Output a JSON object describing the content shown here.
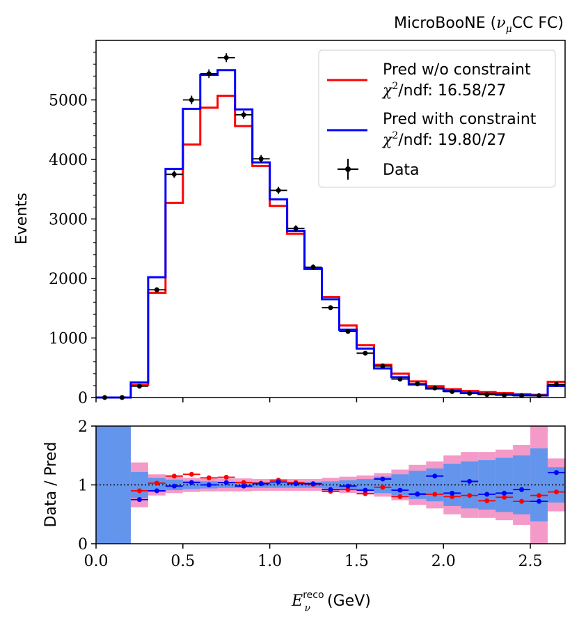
{
  "chart_data": [
    {
      "type": "histogram",
      "title": "MicroBooNE (νμCC FC)",
      "title_main": "MicroBooNE (",
      "title_nu": "ν",
      "title_mu": "μ",
      "title_rest": "CC FC)",
      "ylabel": "Events",
      "xlim": [
        0,
        2.7
      ],
      "ylim": [
        0,
        6000
      ],
      "yticks": [
        0,
        1000,
        2000,
        3000,
        4000,
        5000
      ],
      "ytick_labels": [
        "0",
        "1000",
        "2000",
        "3000",
        "4000",
        "5000"
      ],
      "bin_edges": [
        0.0,
        0.1,
        0.2,
        0.3,
        0.4,
        0.5,
        0.6,
        0.7,
        0.8,
        0.9,
        1.0,
        1.1,
        1.2,
        1.3,
        1.4,
        1.5,
        1.6,
        1.7,
        1.8,
        1.9,
        2.0,
        2.1,
        2.2,
        2.3,
        2.4,
        2.5,
        2.6,
        2.7
      ],
      "series": [
        {
          "name": "Pred w/o constraint",
          "color": "#ff0000",
          "values": [
            0,
            0,
            210,
            1760,
            3270,
            4250,
            4870,
            5070,
            4560,
            3890,
            3220,
            2750,
            2170,
            1690,
            1210,
            880,
            550,
            400,
            270,
            190,
            140,
            110,
            90,
            75,
            55,
            45,
            265
          ]
        },
        {
          "name": "Pred with constraint",
          "color": "#0000ff",
          "values": [
            0,
            0,
            255,
            2020,
            3840,
            4850,
            5420,
            5500,
            4840,
            3950,
            3330,
            2800,
            2160,
            1650,
            1140,
            820,
            490,
            340,
            220,
            150,
            110,
            75,
            60,
            50,
            40,
            35,
            195
          ]
        }
      ],
      "data_points": {
        "name": "Data",
        "color": "#000000",
        "x": [
          0.05,
          0.15,
          0.25,
          0.35,
          0.45,
          0.55,
          0.65,
          0.75,
          0.85,
          0.95,
          1.05,
          1.15,
          1.25,
          1.35,
          1.45,
          1.55,
          1.65,
          1.75,
          1.85,
          1.95,
          2.05,
          2.15,
          2.25,
          2.35,
          2.45,
          2.55,
          2.65
        ],
        "y": [
          0,
          0,
          190,
          1810,
          3750,
          5000,
          5440,
          5710,
          4750,
          4010,
          3480,
          2840,
          2190,
          1510,
          1110,
          745,
          530,
          310,
          230,
          160,
          100,
          70,
          50,
          40,
          30,
          30,
          220
        ]
      },
      "legend": {
        "location": "top-right",
        "entries": [
          {
            "label": "Pred w/o constraint",
            "stat_prefix": "χ",
            "stat_sup": "2",
            "stat_text": "/ndf: 16.58/27",
            "color": "#ff0000",
            "kind": "line"
          },
          {
            "label": "Pred with constraint",
            "stat_prefix": "χ",
            "stat_sup": "2",
            "stat_text": "/ndf: 19.80/27",
            "color": "#0000ff",
            "kind": "line"
          },
          {
            "label": "Data",
            "color": "#000000",
            "kind": "errorbar"
          }
        ]
      }
    },
    {
      "type": "ratio",
      "ylabel": "Data / Pred",
      "xlabel_base": "E",
      "xlabel_sub": "ν",
      "xlabel_sup": "reco",
      "xlabel_unit": "(GeV)",
      "xlim": [
        0,
        2.7
      ],
      "ylim": [
        0,
        2
      ],
      "xticks": [
        0.0,
        0.5,
        1.0,
        1.5,
        2.0,
        2.5
      ],
      "xtick_labels": [
        "0.0",
        "0.5",
        "1.0",
        "1.5",
        "2.0",
        "2.5"
      ],
      "yticks": [
        0,
        1,
        2
      ],
      "ytick_labels": [
        "0",
        "1",
        "2"
      ],
      "reference_line": 1,
      "bin_edges": [
        0.0,
        0.1,
        0.2,
        0.3,
        0.4,
        0.5,
        0.6,
        0.7,
        0.8,
        0.9,
        1.0,
        1.1,
        1.2,
        1.3,
        1.4,
        1.5,
        1.6,
        1.7,
        1.8,
        1.9,
        2.0,
        2.1,
        2.2,
        2.3,
        2.4,
        2.5,
        2.6,
        2.7
      ],
      "bands": [
        {
          "name": "Pred w/o constraint uncertainty",
          "color": "#f49ac9",
          "lower": [
            0,
            0,
            0.62,
            0.82,
            0.86,
            0.88,
            0.89,
            0.89,
            0.89,
            0.9,
            0.9,
            0.9,
            0.9,
            0.88,
            0.86,
            0.84,
            0.8,
            0.74,
            0.66,
            0.6,
            0.5,
            0.44,
            0.44,
            0.4,
            0.32,
            0.0,
            0.55
          ],
          "upper": [
            2,
            2,
            1.38,
            1.18,
            1.14,
            1.12,
            1.11,
            1.11,
            1.11,
            1.1,
            1.1,
            1.1,
            1.1,
            1.12,
            1.14,
            1.16,
            1.2,
            1.26,
            1.34,
            1.4,
            1.5,
            1.56,
            1.56,
            1.6,
            1.68,
            2.0,
            1.45
          ]
        },
        {
          "name": "Pred with constraint uncertainty",
          "color": "#6495ed",
          "lower": [
            0,
            0,
            0.78,
            0.88,
            0.91,
            0.93,
            0.94,
            0.95,
            0.95,
            0.95,
            0.95,
            0.95,
            0.95,
            0.94,
            0.92,
            0.9,
            0.86,
            0.82,
            0.76,
            0.72,
            0.64,
            0.6,
            0.58,
            0.54,
            0.5,
            0.38,
            0.7
          ],
          "upper": [
            2,
            2,
            1.22,
            1.12,
            1.09,
            1.07,
            1.06,
            1.05,
            1.05,
            1.05,
            1.05,
            1.05,
            1.05,
            1.06,
            1.08,
            1.1,
            1.14,
            1.18,
            1.24,
            1.28,
            1.36,
            1.4,
            1.42,
            1.46,
            1.5,
            1.62,
            1.3
          ]
        }
      ],
      "series": [
        {
          "name": "Data / Pred w/o constraint",
          "color": "#ff0000",
          "x": [
            0.25,
            0.35,
            0.45,
            0.55,
            0.65,
            0.75,
            0.85,
            0.95,
            1.05,
            1.15,
            1.25,
            1.35,
            1.45,
            1.55,
            1.65,
            1.75,
            1.85,
            1.95,
            2.05,
            2.15,
            2.25,
            2.35,
            2.45,
            2.55,
            2.65
          ],
          "y": [
            0.9,
            1.03,
            1.15,
            1.18,
            1.12,
            1.13,
            1.04,
            1.03,
            1.08,
            1.04,
            1.01,
            0.89,
            0.92,
            0.85,
            0.96,
            0.8,
            0.85,
            0.84,
            0.8,
            0.82,
            0.73,
            0.79,
            0.72,
            0.82,
            0.88
          ]
        },
        {
          "name": "Data / Pred with constraint",
          "color": "#0000ff",
          "x": [
            0.25,
            0.35,
            0.45,
            0.55,
            0.65,
            0.75,
            0.85,
            0.95,
            1.05,
            1.15,
            1.25,
            1.35,
            1.45,
            1.55,
            1.65,
            1.75,
            1.85,
            1.95,
            2.05,
            2.15,
            2.25,
            2.35,
            2.45,
            2.55,
            2.65
          ],
          "y": [
            0.75,
            0.9,
            0.98,
            1.04,
            1.0,
            1.04,
            0.98,
            1.02,
            1.05,
            1.02,
            1.02,
            0.92,
            0.98,
            0.91,
            1.1,
            0.91,
            0.84,
            1.15,
            0.86,
            1.06,
            0.84,
            0.86,
            0.92,
            0.72,
            1.21
          ]
        }
      ]
    }
  ]
}
